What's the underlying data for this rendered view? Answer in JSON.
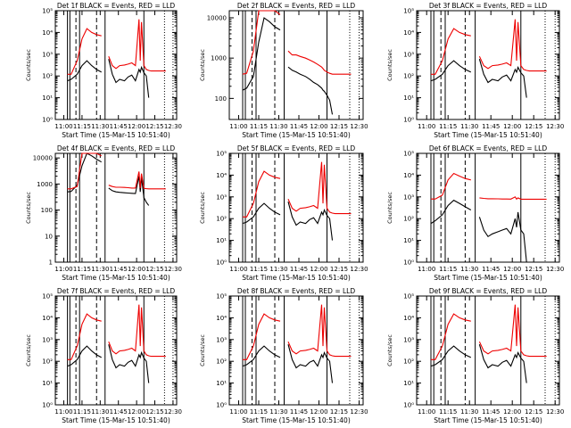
{
  "figure": {
    "ylabel": "Counts/sec",
    "xlabel": "Start Time (15-Mar-15 10:51:40)",
    "x_ticks": [
      "11:00",
      "11:15",
      "11:30",
      "11:45",
      "12:00",
      "12:15",
      "12:30"
    ],
    "colors": {
      "events": "#000000",
      "lld": "#ee0000",
      "axes": "#000000"
    }
  },
  "chart_data": [
    {
      "type": "line",
      "title": "Det 1f BLACK = Events, RED = LLD",
      "x": [
        "10:53",
        "11:03",
        "11:06",
        "11:11",
        "11:15",
        "11:19",
        "11:23",
        "11:27",
        "11:31",
        "11:34",
        "11:37",
        "11:40",
        "11:43",
        "11:46",
        "11:50",
        "11:53",
        "11:56",
        "11:59",
        "12:02",
        "12:03",
        "12:04",
        "12:06",
        "12:08",
        "12:10",
        "12:12",
        "12:15",
        "12:19",
        "12:24"
      ],
      "series": [
        {
          "name": "Events",
          "values": [
            null,
            60,
            70,
            120,
            300,
            500,
            300,
            200,
            150,
            null,
            600,
            120,
            50,
            70,
            60,
            90,
            110,
            60,
            200,
            150,
            250,
            140,
            100,
            10,
            null,
            null,
            null,
            null
          ]
        },
        {
          "name": "LLD",
          "values": [
            null,
            120,
            120,
            500,
            5000,
            15000,
            10000,
            8000,
            7000,
            null,
            800,
            300,
            220,
            300,
            320,
            350,
            400,
            300,
            40000,
            500,
            30000,
            300,
            200,
            180,
            170,
            170,
            170,
            170
          ]
        }
      ],
      "ylim": [
        1,
        100000
      ],
      "yscale": "log",
      "y_ticks": [
        "10⁰",
        "10¹",
        "10²",
        "10³",
        "10⁴",
        "10⁵"
      ]
    },
    {
      "type": "line",
      "title": "Det 2f BLACK = Events, RED = LLD",
      "x": [
        "10:53",
        "11:03",
        "11:06",
        "11:11",
        "11:15",
        "11:19",
        "11:23",
        "11:27",
        "11:31",
        "11:34",
        "11:37",
        "11:40",
        "11:43",
        "11:46",
        "11:50",
        "11:53",
        "11:56",
        "11:59",
        "12:02",
        "12:03",
        "12:04",
        "12:06",
        "12:08",
        "12:10",
        "12:12",
        "12:15",
        "12:19",
        "12:24"
      ],
      "series": [
        {
          "name": "Events",
          "values": [
            null,
            160,
            180,
            350,
            2500,
            10000,
            8000,
            6000,
            5000,
            null,
            600,
            500,
            450,
            400,
            350,
            300,
            250,
            220,
            180,
            160,
            150,
            120,
            90,
            40,
            null,
            null,
            null,
            null
          ]
        },
        {
          "name": "LLD",
          "values": [
            null,
            400,
            420,
            1500,
            15000,
            20000,
            18000,
            15000,
            12000,
            null,
            1500,
            1200,
            1200,
            1100,
            1000,
            900,
            800,
            700,
            600,
            550,
            500,
            450,
            420,
            400,
            400,
            400,
            400,
            400
          ]
        }
      ],
      "ylim": [
        30,
        15000
      ],
      "yscale": "log",
      "y_ticks": [
        "100",
        "1000",
        "10000"
      ]
    },
    {
      "type": "line",
      "title": "Det 3f BLACK = Events, RED = LLD",
      "x": [
        "10:53",
        "11:03",
        "11:06",
        "11:11",
        "11:15",
        "11:19",
        "11:23",
        "11:27",
        "11:31",
        "11:34",
        "11:37",
        "11:40",
        "11:43",
        "11:46",
        "11:50",
        "11:53",
        "11:56",
        "11:59",
        "12:02",
        "12:03",
        "12:04",
        "12:06",
        "12:08",
        "12:10",
        "12:12",
        "12:15",
        "12:19",
        "12:24"
      ],
      "series": [
        {
          "name": "Events",
          "values": [
            null,
            60,
            70,
            120,
            300,
            500,
            300,
            200,
            150,
            null,
            600,
            120,
            50,
            70,
            60,
            90,
            110,
            60,
            200,
            150,
            250,
            140,
            100,
            10,
            null,
            null,
            null,
            null
          ]
        },
        {
          "name": "LLD",
          "values": [
            null,
            120,
            120,
            500,
            5000,
            15000,
            10000,
            8000,
            7000,
            null,
            800,
            300,
            220,
            300,
            320,
            350,
            400,
            300,
            40000,
            500,
            30000,
            300,
            200,
            180,
            170,
            170,
            170,
            170
          ]
        }
      ],
      "ylim": [
        1,
        100000
      ],
      "yscale": "log",
      "y_ticks": [
        "10⁰",
        "10¹",
        "10²",
        "10³",
        "10⁴",
        "10⁵"
      ]
    },
    {
      "type": "line",
      "title": "Det 4f BLACK = Events, RED = LLD",
      "x": [
        "10:53",
        "11:03",
        "11:06",
        "11:11",
        "11:15",
        "11:19",
        "11:23",
        "11:27",
        "11:31",
        "11:34",
        "11:37",
        "11:40",
        "11:43",
        "11:46",
        "11:50",
        "11:53",
        "11:56",
        "11:59",
        "12:02",
        "12:03",
        "12:04",
        "12:06",
        "12:08",
        "12:10",
        "12:12",
        "12:15",
        "12:19",
        "12:24"
      ],
      "series": [
        {
          "name": "Events",
          "values": [
            null,
            500,
            520,
            900,
            5000,
            15000,
            12000,
            9000,
            7000,
            null,
            700,
            550,
            500,
            480,
            460,
            450,
            440,
            430,
            2000,
            500,
            1800,
            300,
            200,
            150,
            null,
            null,
            null,
            null
          ]
        },
        {
          "name": "LLD",
          "values": [
            null,
            650,
            650,
            800,
            15000,
            20000,
            18000,
            15000,
            12000,
            null,
            900,
            800,
            750,
            750,
            740,
            720,
            700,
            700,
            3000,
            700,
            2500,
            680,
            660,
            650,
            650,
            650,
            650,
            650
          ]
        }
      ],
      "ylim": [
        1,
        15000
      ],
      "yscale": "log",
      "y_ticks": [
        "1",
        "10",
        "100",
        "1000",
        "10000"
      ]
    },
    {
      "type": "line",
      "title": "Det 5f BLACK = Events, RED = LLD",
      "x": [
        "10:53",
        "11:03",
        "11:06",
        "11:11",
        "11:15",
        "11:19",
        "11:23",
        "11:27",
        "11:31",
        "11:34",
        "11:37",
        "11:40",
        "11:43",
        "11:46",
        "11:50",
        "11:53",
        "11:56",
        "11:59",
        "12:02",
        "12:03",
        "12:04",
        "12:06",
        "12:08",
        "12:10",
        "12:12",
        "12:15",
        "12:19",
        "12:24"
      ],
      "series": [
        {
          "name": "Events",
          "values": [
            null,
            60,
            70,
            120,
            300,
            500,
            300,
            200,
            150,
            null,
            600,
            120,
            50,
            70,
            60,
            90,
            110,
            60,
            200,
            150,
            250,
            140,
            100,
            10,
            null,
            null,
            null,
            null
          ]
        },
        {
          "name": "LLD",
          "values": [
            null,
            120,
            120,
            500,
            5000,
            15000,
            10000,
            8000,
            7000,
            null,
            800,
            300,
            220,
            300,
            320,
            350,
            400,
            300,
            40000,
            500,
            30000,
            300,
            200,
            180,
            170,
            170,
            170,
            170
          ]
        }
      ],
      "ylim": [
        1,
        100000
      ],
      "yscale": "log",
      "y_ticks": [
        "10⁰",
        "10¹",
        "10²",
        "10³",
        "10⁴",
        "10⁵"
      ]
    },
    {
      "type": "line",
      "title": "Det 6f BLACK = Events, RED = LLD",
      "x": [
        "10:53",
        "11:03",
        "11:06",
        "11:11",
        "11:15",
        "11:19",
        "11:23",
        "11:27",
        "11:31",
        "11:34",
        "11:37",
        "11:40",
        "11:43",
        "11:46",
        "11:50",
        "11:53",
        "11:56",
        "11:59",
        "12:02",
        "12:03",
        "12:04",
        "12:06",
        "12:08",
        "12:10",
        "12:12",
        "12:15",
        "12:19",
        "12:24"
      ],
      "series": [
        {
          "name": "Events",
          "values": [
            null,
            60,
            80,
            150,
            400,
            700,
            500,
            350,
            250,
            null,
            120,
            30,
            15,
            20,
            25,
            30,
            35,
            20,
            100,
            40,
            200,
            30,
            20,
            1,
            null,
            null,
            null,
            null
          ]
        },
        {
          "name": "LLD",
          "values": [
            null,
            800,
            800,
            1200,
            6000,
            12000,
            9000,
            7000,
            6000,
            null,
            900,
            850,
            820,
            820,
            810,
            800,
            800,
            790,
            1000,
            790,
            900,
            780,
            780,
            780,
            780,
            780,
            780,
            780
          ]
        }
      ],
      "ylim": [
        1,
        100000
      ],
      "yscale": "log",
      "y_ticks": [
        "10⁰",
        "10¹",
        "10²",
        "10³",
        "10⁴",
        "10⁵"
      ]
    },
    {
      "type": "line",
      "title": "Det 7f BLACK = Events, RED = LLD",
      "x": [
        "10:53",
        "11:03",
        "11:06",
        "11:11",
        "11:15",
        "11:19",
        "11:23",
        "11:27",
        "11:31",
        "11:34",
        "11:37",
        "11:40",
        "11:43",
        "11:46",
        "11:50",
        "11:53",
        "11:56",
        "11:59",
        "12:02",
        "12:03",
        "12:04",
        "12:06",
        "12:08",
        "12:10",
        "12:12",
        "12:15",
        "12:19",
        "12:24"
      ],
      "series": [
        {
          "name": "Events",
          "values": [
            null,
            60,
            70,
            120,
            300,
            500,
            300,
            200,
            150,
            null,
            600,
            120,
            50,
            70,
            60,
            90,
            110,
            60,
            200,
            150,
            250,
            140,
            100,
            10,
            null,
            null,
            null,
            null
          ]
        },
        {
          "name": "LLD",
          "values": [
            null,
            120,
            120,
            500,
            5000,
            15000,
            10000,
            8000,
            7000,
            null,
            800,
            300,
            220,
            300,
            320,
            350,
            400,
            300,
            40000,
            500,
            30000,
            300,
            200,
            180,
            170,
            170,
            170,
            170
          ]
        }
      ],
      "ylim": [
        1,
        100000
      ],
      "yscale": "log",
      "y_ticks": [
        "10⁰",
        "10¹",
        "10²",
        "10³",
        "10⁴",
        "10⁵"
      ]
    },
    {
      "type": "line",
      "title": "Det 8f BLACK = Events, RED = LLD",
      "x": [
        "10:53",
        "11:03",
        "11:06",
        "11:11",
        "11:15",
        "11:19",
        "11:23",
        "11:27",
        "11:31",
        "11:34",
        "11:37",
        "11:40",
        "11:43",
        "11:46",
        "11:50",
        "11:53",
        "11:56",
        "11:59",
        "12:02",
        "12:03",
        "12:04",
        "12:06",
        "12:08",
        "12:10",
        "12:12",
        "12:15",
        "12:19",
        "12:24"
      ],
      "series": [
        {
          "name": "Events",
          "values": [
            null,
            60,
            70,
            120,
            300,
            500,
            300,
            200,
            150,
            null,
            600,
            120,
            50,
            70,
            60,
            90,
            110,
            60,
            200,
            150,
            250,
            140,
            100,
            10,
            null,
            null,
            null,
            null
          ]
        },
        {
          "name": "LLD",
          "values": [
            null,
            120,
            120,
            500,
            5000,
            15000,
            10000,
            8000,
            7000,
            null,
            800,
            300,
            220,
            300,
            320,
            350,
            400,
            300,
            40000,
            500,
            30000,
            300,
            200,
            180,
            170,
            170,
            170,
            170
          ]
        }
      ],
      "ylim": [
        1,
        100000
      ],
      "yscale": "log",
      "y_ticks": [
        "10⁰",
        "10¹",
        "10²",
        "10³",
        "10⁴",
        "10⁵"
      ]
    },
    {
      "type": "line",
      "title": "Det 9f BLACK = Events, RED = LLD",
      "x": [
        "10:53",
        "11:03",
        "11:06",
        "11:11",
        "11:15",
        "11:19",
        "11:23",
        "11:27",
        "11:31",
        "11:34",
        "11:37",
        "11:40",
        "11:43",
        "11:46",
        "11:50",
        "11:53",
        "11:56",
        "11:59",
        "12:02",
        "12:03",
        "12:04",
        "12:06",
        "12:08",
        "12:10",
        "12:12",
        "12:15",
        "12:19",
        "12:24"
      ],
      "series": [
        {
          "name": "Events",
          "values": [
            null,
            60,
            70,
            120,
            300,
            500,
            300,
            200,
            150,
            null,
            600,
            120,
            50,
            70,
            60,
            90,
            110,
            60,
            200,
            150,
            250,
            140,
            100,
            10,
            null,
            null,
            null,
            null
          ]
        },
        {
          "name": "LLD",
          "values": [
            null,
            120,
            120,
            500,
            5000,
            15000,
            10000,
            8000,
            7000,
            null,
            800,
            300,
            220,
            300,
            320,
            350,
            400,
            300,
            40000,
            500,
            30000,
            300,
            200,
            180,
            170,
            170,
            170,
            170
          ]
        }
      ],
      "ylim": [
        1,
        100000
      ],
      "yscale": "log",
      "y_ticks": [
        "10⁰",
        "10¹",
        "10²",
        "10³",
        "10⁴",
        "10⁵"
      ]
    }
  ]
}
